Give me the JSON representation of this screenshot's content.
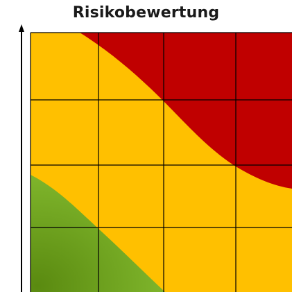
{
  "title": "Risikobewertung",
  "colors": {
    "high": "#c00000",
    "medium": "#ffc000",
    "low_dark": "#5a8a10",
    "low_light": "#7db32a",
    "grid": "#000000",
    "axis": "#000000"
  },
  "grid": {
    "columns": 4,
    "rows": 4
  }
}
